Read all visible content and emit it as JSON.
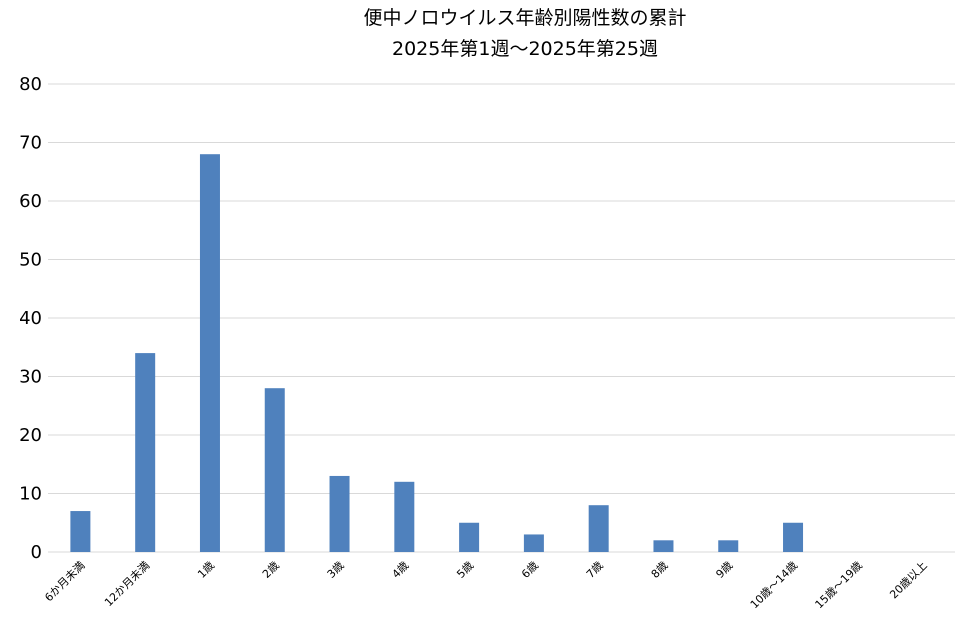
{
  "chart_data": {
    "type": "bar",
    "title": "便中ノロウイルス年齢別陽性数の累計",
    "subtitle": "2025年第1週～2025年第25週",
    "xlabel": "",
    "ylabel": "",
    "categories": [
      "6か月未満",
      "12か月未満",
      "1歳",
      "2歳",
      "3歳",
      "4歳",
      "5歳",
      "6歳",
      "7歳",
      "8歳",
      "9歳",
      "10歳～14歳",
      "15歳～19歳",
      "20歳以上"
    ],
    "values": [
      7,
      34,
      68,
      28,
      13,
      12,
      5,
      3,
      8,
      2,
      2,
      5,
      0,
      0
    ],
    "ylim": [
      0,
      80
    ],
    "yticks": [
      0,
      10,
      20,
      30,
      40,
      50,
      60,
      70,
      80
    ],
    "grid": true,
    "legend": "none",
    "bar_color": "#4f81bd"
  }
}
